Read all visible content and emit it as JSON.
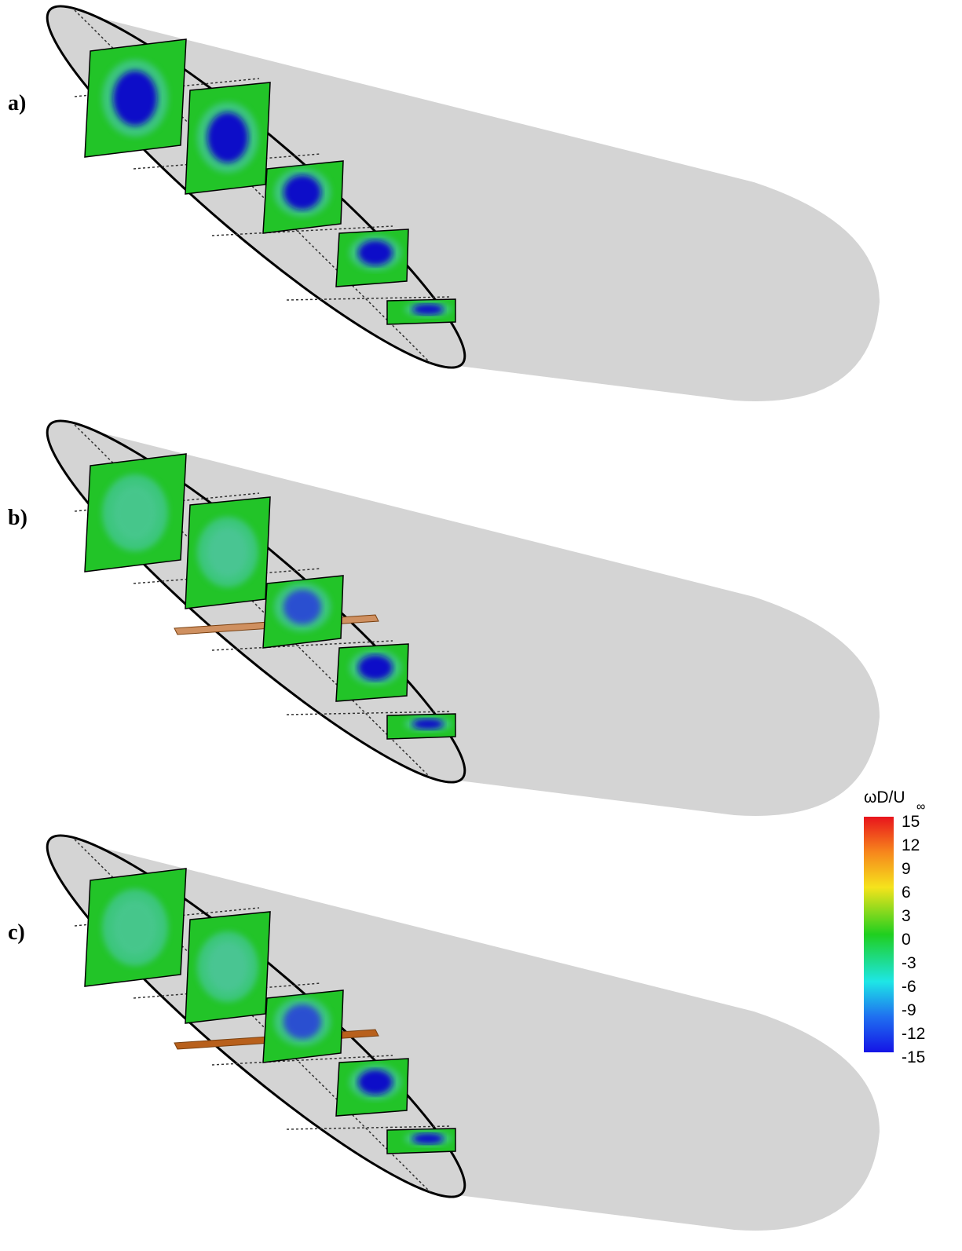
{
  "panels": [
    {
      "label": "a)"
    },
    {
      "label": "b)"
    },
    {
      "label": "c)"
    }
  ],
  "colorbar": {
    "title": "ωD/U",
    "title_subscript": "∞",
    "ticks": [
      15,
      12,
      9,
      6,
      3,
      0,
      -3,
      -6,
      -9,
      -12,
      -15
    ]
  }
}
